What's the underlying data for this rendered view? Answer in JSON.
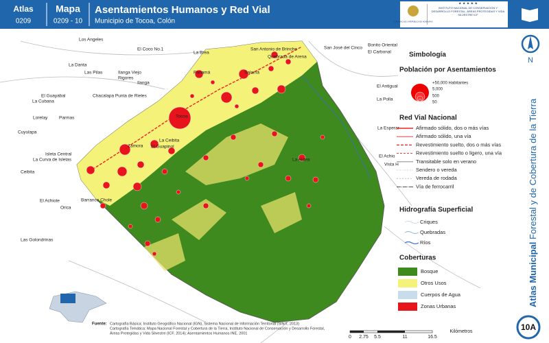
{
  "header": {
    "atlas_label": "Atlas",
    "atlas_code": "0209",
    "map_label": "Mapa",
    "map_code": "0209 - 10",
    "title": "Asentamientos Humanos y Red Vial",
    "subtitle": "Municipio de Tocoa, Colón",
    "logo_left": "GOBIERNO DE LA REPÚBLICA DE HONDURAS",
    "logo_right": "INSTITUTO NACIONAL DE CONSERVACIÓN Y DESARROLLO FORESTAL, ÁREAS PROTEGIDAS Y VIDA SILVESTRE ICF"
  },
  "sidebar": {
    "north": "N",
    "series_bold": "Atlas Municipal",
    "series_rest": " Forestal y de Cobertura de la Tierra",
    "sheet": "10A"
  },
  "places": [
    "La Brea",
    "Los Angeles",
    "El Coco No.1",
    "San Antonio de Brinche",
    "San José del Cinco",
    "Bonito Oriental",
    "El Carbonal",
    "Quebrada de Arena",
    "La Danta",
    "Las Pilas",
    "Ilanga Viejo",
    "Rigores",
    "Ilanga",
    "Panamá",
    "Salamá",
    "Tocoa",
    "El Guayabal",
    "La Cubana",
    "Chacalapa Punta de Rieles",
    "Lorelay",
    "Parmas",
    "Cuyulapa",
    "Isleta Central",
    "La Curva de Isletas",
    "Ceibita",
    "El Achiote",
    "Orica",
    "Las Golondrinas",
    "Zamora",
    "La Ceibita",
    "El Guapinol",
    "Barranco Chole",
    "El Antigual",
    "La Polla",
    "La Aldea",
    "La Esperar",
    "El Achio",
    "Vista H"
  ],
  "legend": {
    "title": "Simbología",
    "population": {
      "title": "Población por Asentamientos",
      "items": [
        "+50,000 Habitantes",
        "5,000",
        "500",
        "50"
      ]
    },
    "roads": {
      "title": "Red Vial Nacional",
      "items": [
        "Afirmado sólido, dos o más vías",
        "Afirmado sólido, una vía",
        "Revestimiento suelto, dos o más vías",
        "Revestimiento suelto o ligero, una vía",
        "Transitable solo en verano",
        "Sendero o vereda",
        "Vereda de rodada",
        "Vía de ferrocarril"
      ]
    },
    "hydro": {
      "title": "Hidrografía Superficial",
      "items": [
        "Criques",
        "Quebradas",
        "Ríos"
      ]
    },
    "cover": {
      "title": "Coberturas",
      "items": [
        "Bosque",
        "Otros Usos",
        "Cuerpos de Agua",
        "Zonas Urbanas"
      ]
    }
  },
  "footer": {
    "source_label": "Fuente:",
    "source_lines": [
      "Cartografía Básica: Instituto Geográfico Nacional (IGN), Sistema Nacional de Información Territorial (SINIT, 2013)",
      "Cartografía Temática: Mapa Nacional Forestal y Cobertura de la Tierra, Instituto Nacional de Conservación y Desarrollo Forestal,",
      "Áreas Protegidas y Vida Silvestre (ICF, 2014); Asentamientos Humanos INE, 2001"
    ],
    "scale_ticks": [
      "0",
      "2.75",
      "5.5",
      "11",
      "16.5"
    ],
    "scale_unit": "Kilómetros"
  }
}
